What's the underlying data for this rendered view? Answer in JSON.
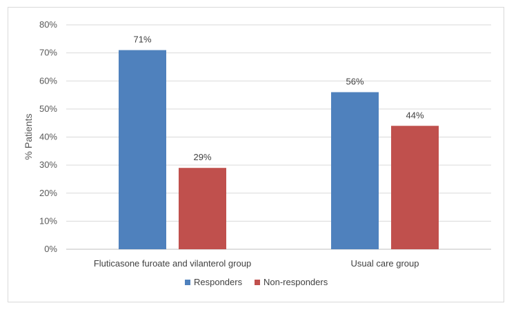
{
  "chart_data": {
    "type": "bar",
    "title": "",
    "xlabel": "",
    "ylabel": "% Patients",
    "ylim": [
      0,
      80
    ],
    "y_ticks": [
      "0%",
      "10%",
      "20%",
      "30%",
      "40%",
      "50%",
      "60%",
      "70%",
      "80%"
    ],
    "categories": [
      "Fluticasone furoate and vilanterol group",
      "Usual care group"
    ],
    "series": [
      {
        "name": "Responders",
        "values": [
          71,
          56
        ],
        "labels": [
          "71%",
          "56%"
        ],
        "color": "#4f81bd"
      },
      {
        "name": "Non-responders",
        "values": [
          29,
          44
        ],
        "labels": [
          "29%",
          "44%"
        ],
        "color": "#c0504d"
      }
    ],
    "grid": true,
    "legend_position": "bottom"
  }
}
